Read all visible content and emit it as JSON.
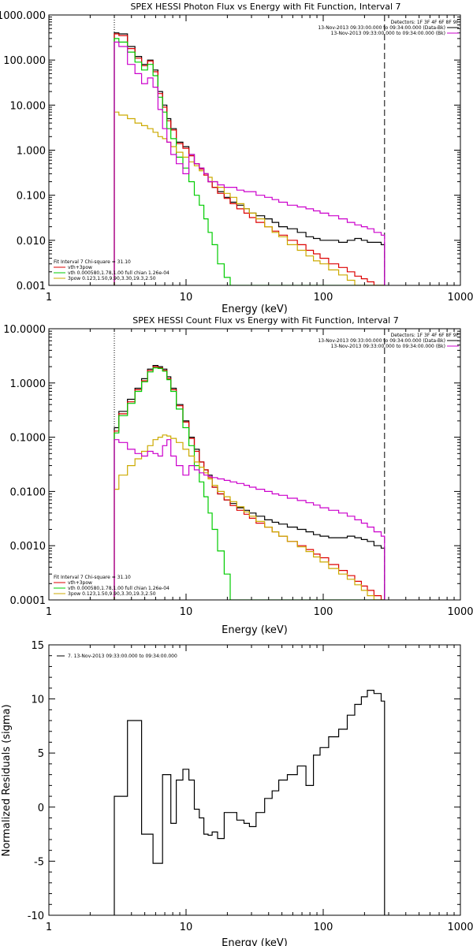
{
  "chart_data": [
    {
      "type": "line",
      "title": "SPEX HESSI Photon Flux vs Energy with Fit Function, Interval 7",
      "xlabel": "Energy (keV)",
      "ylabel": "",
      "xscale": "log",
      "yscale": "log",
      "xlim": [
        1,
        1000
      ],
      "ylim": [
        0.001,
        1000
      ],
      "xticks": [
        "1",
        "10",
        "100",
        "1000"
      ],
      "yticks": [
        "1000.000",
        "100.000",
        "10.000",
        "1.000",
        "0.100",
        "0.010",
        "0.001"
      ],
      "legend_header": "Detectors: 1F 3F 4F 6F 8F 9F",
      "legend": [
        {
          "text": "13-Nov-2013 09:33:00.000 to 09:34:00.000 (Data-Bk)",
          "color": "#000000"
        },
        {
          "text": "13-Nov-2013 09:33:00.000 to 09:34:00.000 (Bk)",
          "color": "#cc00cc"
        }
      ],
      "fit_info": [
        {
          "text": "Fit Interval 7   Chi-square = 31.10",
          "color": "#000000"
        },
        {
          "text": "vth+3pow",
          "color": "#dd0000"
        },
        {
          "text": "vth 0.000580,1.78,1.00  full chian 1.26e-04",
          "color": "#00aa00"
        },
        {
          "text": "3pow 0.123,1.50,9.90,3.30,19.3,2.50",
          "color": "#ccaa00"
        }
      ],
      "vlines": [
        {
          "x": 3,
          "style": "dotted",
          "color": "#000000"
        },
        {
          "x": 280,
          "style": "dashed",
          "color": "#000000"
        }
      ],
      "x": [
        3,
        3.5,
        4,
        4.5,
        5,
        5.5,
        6,
        6.5,
        7,
        7.5,
        8,
        9,
        10,
        11,
        12,
        13,
        14,
        15,
        16,
        18,
        20,
        22,
        25,
        28,
        30,
        35,
        40,
        45,
        50,
        60,
        70,
        80,
        90,
        100,
        120,
        140,
        160,
        180,
        200,
        220,
        250,
        280
      ],
      "series": [
        {
          "name": "",
          "color": "#000000",
          "values": [
            400,
            380,
            200,
            120,
            80,
            100,
            60,
            20,
            10,
            5,
            3,
            1.5,
            1.2,
            0.8,
            0.5,
            0.4,
            0.3,
            0.2,
            0.15,
            0.12,
            0.09,
            0.07,
            0.06,
            0.05,
            0.04,
            0.035,
            0.03,
            0.025,
            0.02,
            0.018,
            0.015,
            0.012,
            0.011,
            0.01,
            0.01,
            0.009,
            0.01,
            0.011,
            0.01,
            0.009,
            0.009,
            0.008
          ]
        },
        {
          "name": "",
          "color": "#dd0000",
          "values": [
            380,
            350,
            180,
            110,
            75,
            95,
            55,
            18,
            9,
            4.5,
            2.8,
            1.4,
            1.1,
            0.75,
            0.5,
            0.38,
            0.28,
            0.2,
            0.15,
            0.11,
            0.085,
            0.065,
            0.05,
            0.04,
            0.032,
            0.025,
            0.02,
            0.016,
            0.013,
            0.01,
            0.008,
            0.006,
            0.005,
            0.004,
            0.003,
            0.0025,
            0.002,
            0.0016,
            0.0014,
            0.0012,
            0.001,
            0.001
          ]
        },
        {
          "name": "",
          "color": "#00cc00",
          "values": [
            300,
            250,
            150,
            90,
            60,
            80,
            45,
            15,
            7,
            3,
            1.8,
            0.7,
            0.4,
            0.2,
            0.1,
            0.06,
            0.03,
            0.015,
            0.008,
            0.003,
            0.0015,
            0.001,
            0.001,
            0.001,
            0.001,
            0.001,
            0.001,
            0.001,
            0.001,
            0.001,
            0.001,
            0.001,
            0.001,
            0.001,
            0.001,
            0.001,
            0.001,
            0.001,
            0.001,
            0.001,
            0.001,
            0.001
          ]
        },
        {
          "name": "",
          "color": "#ccaa00",
          "values": [
            7,
            6,
            5,
            4,
            3.5,
            3,
            2.5,
            2,
            1.8,
            1.5,
            1.2,
            0.9,
            0.7,
            0.55,
            0.45,
            0.35,
            0.3,
            0.25,
            0.2,
            0.15,
            0.11,
            0.09,
            0.065,
            0.05,
            0.04,
            0.03,
            0.02,
            0.015,
            0.012,
            0.008,
            0.006,
            0.0045,
            0.0035,
            0.003,
            0.0022,
            0.0017,
            0.0013,
            0.001,
            0.001,
            0.001,
            0.001,
            0.001
          ]
        },
        {
          "name": "",
          "color": "#cc00cc",
          "values": [
            250,
            200,
            80,
            50,
            30,
            40,
            25,
            8,
            3,
            1.5,
            0.8,
            0.5,
            0.3,
            0.8,
            0.5,
            0.4,
            0.3,
            0.2,
            0.2,
            0.17,
            0.15,
            0.15,
            0.13,
            0.12,
            0.12,
            0.1,
            0.09,
            0.08,
            0.07,
            0.06,
            0.055,
            0.05,
            0.045,
            0.04,
            0.035,
            0.03,
            0.025,
            0.022,
            0.02,
            0.018,
            0.015,
            0.013
          ]
        }
      ]
    },
    {
      "type": "line",
      "title": "SPEX HESSI Count Flux vs Energy with Fit Function, Interval 7",
      "xlabel": "Energy (keV)",
      "ylabel": "",
      "xscale": "log",
      "yscale": "log",
      "xlim": [
        1,
        1000
      ],
      "ylim": [
        0.0001,
        10
      ],
      "xticks": [
        "1",
        "10",
        "100",
        "1000"
      ],
      "yticks": [
        "10.0000",
        "1.0000",
        "0.1000",
        "0.0100",
        "0.0010",
        "0.0001"
      ],
      "legend_header": "Detectors: 1F 3F 4F 6F 8F 9F",
      "legend": [
        {
          "text": "13-Nov-2013 09:33:00.000 to 09:34:00.000 (Data-Bk)",
          "color": "#000000"
        },
        {
          "text": "13-Nov-2013 09:33:00.000 to 09:34:00.000 (Bk)",
          "color": "#cc00cc"
        }
      ],
      "fit_info": [
        {
          "text": "Fit Interval 7   Chi-square = 31.10",
          "color": "#000000"
        },
        {
          "text": "vth+3pow",
          "color": "#dd0000"
        },
        {
          "text": "vth 0.000580,1.78,1.00  full chian 1.26e-04",
          "color": "#00aa00"
        },
        {
          "text": "3pow 0.123,1.50,9.90,3.30,19.3,2.50",
          "color": "#ccaa00"
        }
      ],
      "vlines": [
        {
          "x": 3,
          "style": "dotted",
          "color": "#000000"
        },
        {
          "x": 280,
          "style": "dashed",
          "color": "#000000"
        }
      ],
      "x": [
        3,
        3.5,
        4,
        4.5,
        5,
        5.5,
        6,
        6.5,
        7,
        7.5,
        8,
        9,
        10,
        11,
        12,
        13,
        14,
        15,
        16,
        18,
        20,
        22,
        25,
        28,
        30,
        35,
        40,
        45,
        50,
        60,
        70,
        80,
        90,
        100,
        120,
        140,
        160,
        180,
        200,
        220,
        250,
        280
      ],
      "series": [
        {
          "name": "",
          "color": "#000000",
          "values": [
            0.15,
            0.3,
            0.5,
            0.8,
            1.2,
            1.8,
            2.1,
            2.0,
            1.8,
            1.3,
            0.8,
            0.4,
            0.2,
            0.1,
            0.06,
            0.035,
            0.025,
            0.02,
            0.012,
            0.009,
            0.007,
            0.006,
            0.005,
            0.0045,
            0.004,
            0.0035,
            0.003,
            0.0027,
            0.0025,
            0.0022,
            0.002,
            0.0018,
            0.0016,
            0.0015,
            0.0014,
            0.0014,
            0.0015,
            0.0014,
            0.0013,
            0.0012,
            0.001,
            0.0009
          ]
        },
        {
          "name": "",
          "color": "#dd0000",
          "values": [
            0.13,
            0.27,
            0.45,
            0.75,
            1.1,
            1.7,
            2.0,
            1.9,
            1.7,
            1.2,
            0.75,
            0.38,
            0.19,
            0.095,
            0.055,
            0.035,
            0.025,
            0.018,
            0.012,
            0.009,
            0.007,
            0.0055,
            0.0045,
            0.0038,
            0.0032,
            0.0026,
            0.0022,
            0.0018,
            0.0015,
            0.0012,
            0.001,
            0.00085,
            0.0007,
            0.0006,
            0.00045,
            0.00035,
            0.00028,
            0.00022,
            0.00018,
            0.00015,
            0.00012,
            0.0001
          ]
        },
        {
          "name": "",
          "color": "#00cc00",
          "values": [
            0.12,
            0.25,
            0.42,
            0.7,
            1.05,
            1.6,
            1.9,
            1.85,
            1.65,
            1.15,
            0.7,
            0.33,
            0.15,
            0.07,
            0.03,
            0.015,
            0.008,
            0.004,
            0.002,
            0.0008,
            0.0003,
            0.0001,
            0.0001,
            0.0001,
            0.0001,
            0.0001,
            0.0001,
            0.0001,
            0.0001,
            0.0001,
            0.0001,
            0.0001,
            0.0001,
            0.0001,
            0.0001,
            0.0001,
            0.0001,
            0.0001,
            0.0001,
            0.0001,
            0.0001,
            0.0001
          ]
        },
        {
          "name": "",
          "color": "#ccaa00",
          "values": [
            0.011,
            0.02,
            0.03,
            0.04,
            0.055,
            0.07,
            0.09,
            0.1,
            0.11,
            0.105,
            0.095,
            0.08,
            0.06,
            0.045,
            0.035,
            0.028,
            0.022,
            0.017,
            0.013,
            0.01,
            0.008,
            0.0065,
            0.0052,
            0.0042,
            0.0035,
            0.0028,
            0.0022,
            0.0018,
            0.0015,
            0.0012,
            0.00095,
            0.00078,
            0.00062,
            0.0005,
            0.00038,
            0.0003,
            0.00024,
            0.00019,
            0.00015,
            0.00012,
            0.0001,
            0.0001
          ]
        },
        {
          "name": "",
          "color": "#cc00cc",
          "values": [
            0.09,
            0.08,
            0.06,
            0.05,
            0.045,
            0.055,
            0.05,
            0.045,
            0.07,
            0.09,
            0.045,
            0.03,
            0.02,
            0.03,
            0.025,
            0.022,
            0.02,
            0.019,
            0.018,
            0.017,
            0.016,
            0.015,
            0.014,
            0.013,
            0.012,
            0.011,
            0.01,
            0.009,
            0.0085,
            0.0075,
            0.0068,
            0.0062,
            0.0056,
            0.005,
            0.0045,
            0.004,
            0.0035,
            0.003,
            0.0026,
            0.0022,
            0.0018,
            0.0015
          ]
        }
      ]
    },
    {
      "type": "line",
      "title": "",
      "xlabel": "Energy (keV)",
      "ylabel": "Normalized Residuals (sigma)",
      "xscale": "log",
      "yscale": "linear",
      "xlim": [
        1,
        1000
      ],
      "ylim": [
        -10,
        15
      ],
      "xticks": [
        "1",
        "10",
        "100",
        "1000"
      ],
      "yticks": [
        "15",
        "10",
        "5",
        "0",
        "-5",
        "-10"
      ],
      "legend": [
        {
          "text": "7. 13-Nov-2013 09:33:00.000 to 09:34:00.000",
          "color": "#000000"
        }
      ],
      "x": [
        3,
        3.5,
        4,
        4.5,
        5,
        5.5,
        6,
        6.5,
        7,
        7.5,
        8,
        9,
        10,
        11,
        12,
        13,
        14,
        15,
        16,
        18,
        20,
        22,
        25,
        28,
        30,
        35,
        40,
        45,
        50,
        60,
        70,
        80,
        90,
        100,
        120,
        140,
        160,
        180,
        200,
        220,
        250,
        280
      ],
      "series": [
        {
          "name": "",
          "color": "#000000",
          "values": [
            1,
            1,
            8,
            8,
            -2.5,
            -2.5,
            -5.2,
            -5.2,
            3,
            3,
            -1.5,
            2.5,
            3.5,
            2.5,
            -0.2,
            -1,
            -2.5,
            -2.6,
            -2.3,
            -2.9,
            -0.5,
            -0.5,
            -1.2,
            -1.5,
            -1.8,
            -0.5,
            0.8,
            1.5,
            2.5,
            3,
            3.8,
            2,
            4.8,
            5.5,
            6.5,
            7.2,
            8.5,
            9.5,
            10.2,
            10.8,
            10.5,
            9.8
          ]
        }
      ]
    }
  ]
}
